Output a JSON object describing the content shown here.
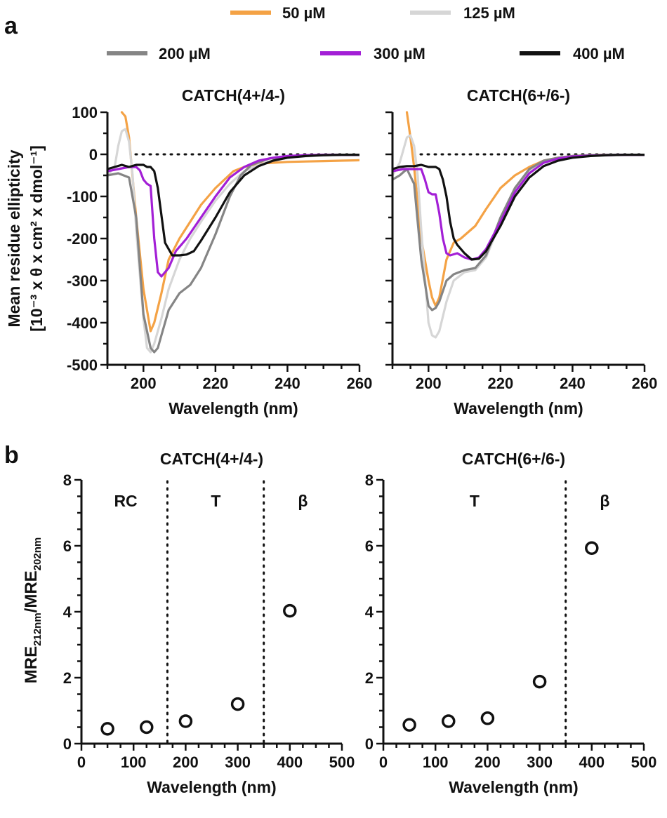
{
  "panel_labels": {
    "a": "a",
    "b": "b"
  },
  "legend": [
    {
      "label": "50 µM",
      "color": "#f4a245"
    },
    {
      "label": "125 µM",
      "color": "#d6d6d6"
    },
    {
      "label": "200 µM",
      "color": "#858585"
    },
    {
      "label": "300 µM",
      "color": "#a31fd6"
    },
    {
      "label": "400 µM",
      "color": "#111111"
    }
  ],
  "chart_data": [
    {
      "type": "line",
      "title": "CATCH(4+/4-)",
      "xlabel": "Wavelength (nm)",
      "ylabel": "Mean residue ellipticity",
      "ylabel_units": "[10⁻³ x θ x cm² x dmol⁻¹]",
      "xlim": [
        190,
        260
      ],
      "ylim": [
        -500,
        100
      ],
      "xticks": [
        200,
        220,
        240,
        260
      ],
      "yticks": [
        100,
        0,
        -100,
        -200,
        -300,
        -400,
        -500
      ],
      "zero_line": true,
      "series": [
        {
          "name": "50 µM",
          "color": "#f4a245",
          "x": [
            194,
            195,
            196,
            198,
            200,
            202,
            203,
            205,
            207,
            210,
            213,
            216,
            220,
            225,
            228,
            232,
            236,
            240,
            245,
            250,
            255,
            260
          ],
          "y": [
            100,
            90,
            40,
            -150,
            -320,
            -420,
            -400,
            -330,
            -250,
            -200,
            -160,
            -120,
            -80,
            -40,
            -30,
            -22,
            -20,
            -18,
            -17,
            -16,
            -15,
            -14
          ]
        },
        {
          "name": "125 µM",
          "color": "#d6d6d6",
          "x": [
            190,
            192,
            193,
            194,
            195,
            196,
            197,
            198,
            200,
            201,
            202,
            203,
            205,
            207,
            210,
            213,
            216,
            220,
            224,
            228,
            232,
            236,
            240,
            245,
            250,
            255,
            260
          ],
          "y": [
            -50,
            -30,
            20,
            55,
            60,
            30,
            -50,
            -180,
            -390,
            -460,
            -470,
            -450,
            -390,
            -320,
            -250,
            -200,
            -160,
            -110,
            -70,
            -40,
            -25,
            -15,
            -8,
            -5,
            -3,
            -2,
            -2
          ]
        },
        {
          "name": "200 µM",
          "color": "#858585",
          "x": [
            190,
            193,
            196,
            198,
            200,
            202,
            203,
            204,
            205,
            207,
            210,
            213,
            216,
            220,
            224,
            227,
            230,
            235,
            240,
            245,
            250,
            255,
            260
          ],
          "y": [
            -50,
            -45,
            -55,
            -150,
            -380,
            -460,
            -470,
            -460,
            -430,
            -370,
            -330,
            -310,
            -270,
            -190,
            -100,
            -50,
            -25,
            -10,
            -5,
            -3,
            -2,
            -1,
            -1
          ]
        },
        {
          "name": "300 µM",
          "color": "#a31fd6",
          "x": [
            190,
            193,
            196,
            198,
            199,
            200,
            201,
            202,
            203,
            204,
            205,
            207,
            209,
            212,
            216,
            220,
            224,
            228,
            232,
            236,
            240,
            245,
            250,
            255,
            260
          ],
          "y": [
            -40,
            -35,
            -30,
            -30,
            -38,
            -60,
            -70,
            -75,
            -200,
            -280,
            -290,
            -270,
            -230,
            -200,
            -150,
            -100,
            -55,
            -30,
            -15,
            -8,
            -4,
            -2,
            -1,
            -1,
            -1
          ]
        },
        {
          "name": "400 µM",
          "color": "#111111",
          "x": [
            190,
            192,
            194,
            196,
            198,
            200,
            201,
            202,
            203,
            204,
            206,
            208,
            210,
            212,
            214,
            216,
            220,
            224,
            228,
            232,
            236,
            240,
            245,
            250,
            255,
            260
          ],
          "y": [
            -35,
            -30,
            -25,
            -30,
            -25,
            -25,
            -30,
            -30,
            -40,
            -80,
            -210,
            -240,
            -240,
            -238,
            -230,
            -205,
            -150,
            -90,
            -50,
            -28,
            -15,
            -8,
            -4,
            -2,
            -1,
            -1
          ]
        }
      ]
    },
    {
      "type": "line",
      "title": "CATCH(6+/6-)",
      "xlabel": "Wavelength (nm)",
      "xlim": [
        190,
        260
      ],
      "ylim": [
        -500,
        100
      ],
      "xticks": [
        200,
        220,
        240,
        260
      ],
      "zero_line": true,
      "series": [
        {
          "name": "50 µM",
          "color": "#f4a245",
          "x": [
            194,
            195,
            196,
            198,
            200,
            201,
            202,
            203,
            205,
            207,
            209,
            211,
            213,
            216,
            220,
            224,
            228,
            232,
            236,
            240,
            245,
            250,
            255,
            260
          ],
          "y": [
            100,
            40,
            -30,
            -200,
            -300,
            -340,
            -360,
            -340,
            -250,
            -210,
            -200,
            -185,
            -170,
            -130,
            -80,
            -50,
            -30,
            -15,
            -8,
            -4,
            -2,
            -1,
            -1,
            -1
          ]
        },
        {
          "name": "125 µM",
          "color": "#d6d6d6",
          "x": [
            190,
            192,
            193,
            194,
            195,
            196,
            197,
            198,
            200,
            201,
            202,
            203,
            205,
            207,
            210,
            213,
            216,
            220,
            224,
            228,
            232,
            236,
            240,
            245,
            250,
            255,
            260
          ],
          "y": [
            -50,
            -20,
            10,
            40,
            45,
            20,
            -50,
            -180,
            -400,
            -430,
            -435,
            -420,
            -350,
            -300,
            -280,
            -275,
            -245,
            -160,
            -85,
            -40,
            -20,
            -10,
            -5,
            -3,
            -2,
            -1,
            -1
          ]
        },
        {
          "name": "200 µM",
          "color": "#858585",
          "x": [
            190,
            192,
            194,
            196,
            198,
            200,
            201,
            202,
            203,
            205,
            207,
            210,
            213,
            216,
            220,
            224,
            228,
            232,
            236,
            240,
            245,
            250,
            255,
            260
          ],
          "y": [
            -60,
            -50,
            -35,
            -70,
            -250,
            -360,
            -370,
            -365,
            -350,
            -300,
            -285,
            -275,
            -270,
            -240,
            -150,
            -80,
            -35,
            -15,
            -8,
            -4,
            -2,
            -1,
            -1,
            -1
          ]
        },
        {
          "name": "300 µM",
          "color": "#a31fd6",
          "x": [
            190,
            193,
            196,
            198,
            199,
            200,
            201,
            202,
            203,
            204,
            205,
            206,
            208,
            210,
            212,
            214,
            216,
            220,
            224,
            228,
            232,
            236,
            240,
            245,
            250,
            255,
            260
          ],
          "y": [
            -40,
            -35,
            -35,
            -35,
            -60,
            -90,
            -95,
            -95,
            -140,
            -200,
            -235,
            -240,
            -235,
            -245,
            -250,
            -245,
            -225,
            -160,
            -90,
            -45,
            -20,
            -10,
            -5,
            -3,
            -2,
            -1,
            -1
          ]
        },
        {
          "name": "400 µM",
          "color": "#111111",
          "x": [
            190,
            192,
            194,
            196,
            198,
            200,
            201,
            202,
            203,
            204,
            205,
            206,
            207,
            208,
            210,
            212,
            214,
            216,
            220,
            224,
            228,
            232,
            236,
            240,
            245,
            250,
            255,
            260
          ],
          "y": [
            -35,
            -30,
            -28,
            -28,
            -25,
            -30,
            -30,
            -30,
            -35,
            -60,
            -100,
            -160,
            -200,
            -215,
            -235,
            -250,
            -248,
            -230,
            -170,
            -100,
            -55,
            -28,
            -15,
            -8,
            -4,
            -2,
            -1,
            -1
          ]
        }
      ]
    },
    {
      "type": "scatter",
      "title": "CATCH(4+/4-)",
      "xlabel": "Wavelength (nm)",
      "ylabel_main": "MRE",
      "ylabel_sub1": "212nm",
      "ylabel_mid": "/MRE",
      "ylabel_sub2": "202nm",
      "xlim": [
        0,
        500
      ],
      "ylim": [
        0,
        8
      ],
      "xticks": [
        0,
        100,
        200,
        300,
        400,
        500
      ],
      "yticks": [
        0,
        2,
        4,
        6,
        8
      ],
      "dividers": [
        165,
        350
      ],
      "regions": [
        {
          "label": "RC",
          "x": 85
        },
        {
          "label": "T",
          "x": 258
        },
        {
          "label": "β",
          "x": 425
        }
      ],
      "points": [
        {
          "x": 50,
          "y": 0.45
        },
        {
          "x": 125,
          "y": 0.5
        },
        {
          "x": 200,
          "y": 0.68
        },
        {
          "x": 300,
          "y": 1.2
        },
        {
          "x": 400,
          "y": 4.03
        }
      ]
    },
    {
      "type": "scatter",
      "title": "CATCH(6+/6-)",
      "xlabel": "Wavelength (nm)",
      "xlim": [
        0,
        500
      ],
      "ylim": [
        0,
        8
      ],
      "xticks": [
        0,
        100,
        200,
        300,
        400,
        500
      ],
      "yticks": [
        0,
        2,
        4,
        6,
        8
      ],
      "dividers": [
        350
      ],
      "regions": [
        {
          "label": "T",
          "x": 175
        },
        {
          "label": "β",
          "x": 425
        }
      ],
      "points": [
        {
          "x": 50,
          "y": 0.57
        },
        {
          "x": 125,
          "y": 0.68
        },
        {
          "x": 200,
          "y": 0.77
        },
        {
          "x": 300,
          "y": 1.88
        },
        {
          "x": 400,
          "y": 5.93
        }
      ]
    }
  ]
}
